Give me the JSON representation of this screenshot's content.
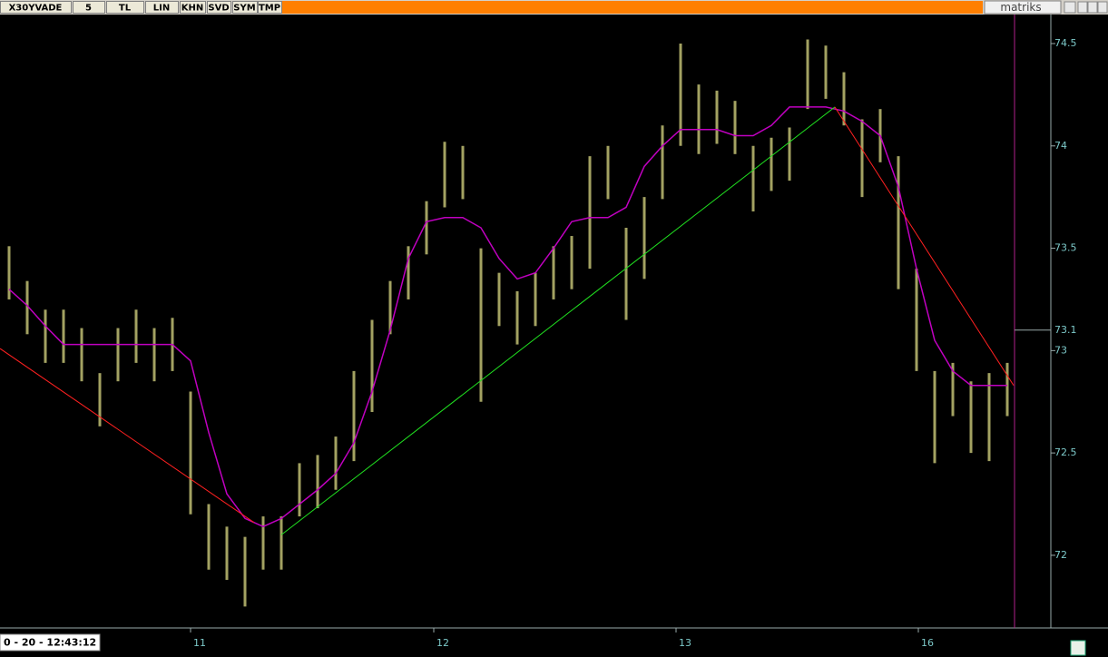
{
  "toolbar": {
    "symbol": "X30YVADE",
    "period": "5",
    "buttons": [
      "TL",
      "LIN",
      "KHN",
      "SVD",
      "SYM",
      "TMP"
    ],
    "active": "KHN",
    "brand": "matriks"
  },
  "status": {
    "datetime": "0 - 20 - 12:43:12"
  },
  "chart_data": {
    "type": "hilo",
    "color": "#a3a262",
    "x": [
      0,
      1,
      2,
      3,
      4,
      5,
      6,
      7,
      8,
      9,
      10,
      11,
      12,
      13,
      14,
      15,
      16,
      17,
      18,
      19,
      20,
      21,
      22,
      23,
      24,
      25,
      26,
      27,
      28,
      29,
      30,
      31,
      32,
      33,
      34,
      35,
      36,
      37,
      38,
      39,
      40,
      41,
      42,
      43,
      44,
      45,
      46,
      47,
      48,
      49,
      50,
      51,
      52,
      53,
      54,
      55
    ],
    "high": [
      73.51,
      73.34,
      73.2,
      73.2,
      73.11,
      72.89,
      73.11,
      73.2,
      73.11,
      73.16,
      72.8,
      72.25,
      72.14,
      72.09,
      72.19,
      72.19,
      72.45,
      72.49,
      72.58,
      72.9,
      73.15,
      73.34,
      73.51,
      73.73,
      74.02,
      74.0,
      73.5,
      73.38,
      73.29,
      73.38,
      73.51,
      73.56,
      73.95,
      74.0,
      73.6,
      73.75,
      74.1,
      74.5,
      74.3,
      74.27,
      74.22,
      74.0,
      74.04,
      74.09,
      74.52,
      74.49,
      74.36,
      74.13,
      74.18,
      73.95,
      73.4,
      72.9,
      72.94,
      72.85,
      72.89,
      72.94
    ],
    "low": [
      73.25,
      73.08,
      72.94,
      72.94,
      72.85,
      72.63,
      72.85,
      72.94,
      72.85,
      72.9,
      72.2,
      71.93,
      71.88,
      71.75,
      71.93,
      71.93,
      72.19,
      72.23,
      72.32,
      72.46,
      72.7,
      73.08,
      73.25,
      73.47,
      73.7,
      73.74,
      72.75,
      73.12,
      73.03,
      73.12,
      73.25,
      73.3,
      73.4,
      73.74,
      73.15,
      73.35,
      73.74,
      74.0,
      73.96,
      74.01,
      73.96,
      73.68,
      73.78,
      73.83,
      74.18,
      74.23,
      74.1,
      73.75,
      73.92,
      73.3,
      72.9,
      72.45,
      72.68,
      72.5,
      72.46,
      72.68
    ],
    "series": [
      {
        "color": "#c000c0",
        "values": [
          73.3,
          73.22,
          73.12,
          73.03,
          73.03,
          73.03,
          73.03,
          73.03,
          73.03,
          73.03,
          72.95,
          72.6,
          72.3,
          72.18,
          72.14,
          72.18,
          72.25,
          72.32,
          72.4,
          72.55,
          72.8,
          73.1,
          73.45,
          73.63,
          73.65,
          73.65,
          73.6,
          73.45,
          73.35,
          73.38,
          73.5,
          73.63,
          73.65,
          73.65,
          73.7,
          73.9,
          74.0,
          74.08,
          74.08,
          74.08,
          74.05,
          74.05,
          74.1,
          74.19,
          74.19,
          74.19,
          74.17,
          74.12,
          74.05,
          73.8,
          73.4,
          73.05,
          72.9,
          72.83,
          72.83,
          72.83
        ]
      }
    ],
    "trendlines": [
      {
        "color": "#ff2020",
        "x": [
          -0.5,
          13.5
        ],
        "y": [
          73.01,
          72.16
        ]
      },
      {
        "color": "#20e020",
        "x": [
          15,
          45.5
        ],
        "y": [
          72.1,
          74.19
        ]
      },
      {
        "color": "#ff2020",
        "x": [
          45.5,
          55.35
        ],
        "y": [
          74.19,
          72.83
        ]
      }
    ],
    "last": 73.1,
    "xlim": [
      -0.5,
      57.4
    ],
    "xticks": [
      {
        "value": 10,
        "label": "11"
      },
      {
        "value": 23.4,
        "label": "12"
      },
      {
        "value": 36.75,
        "label": "13"
      },
      {
        "value": 50.1,
        "label": "16"
      }
    ],
    "ylim": [
      71.645,
      74.633
    ],
    "yticks": [
      72,
      72.5,
      73,
      73.5,
      74,
      74.5
    ]
  }
}
